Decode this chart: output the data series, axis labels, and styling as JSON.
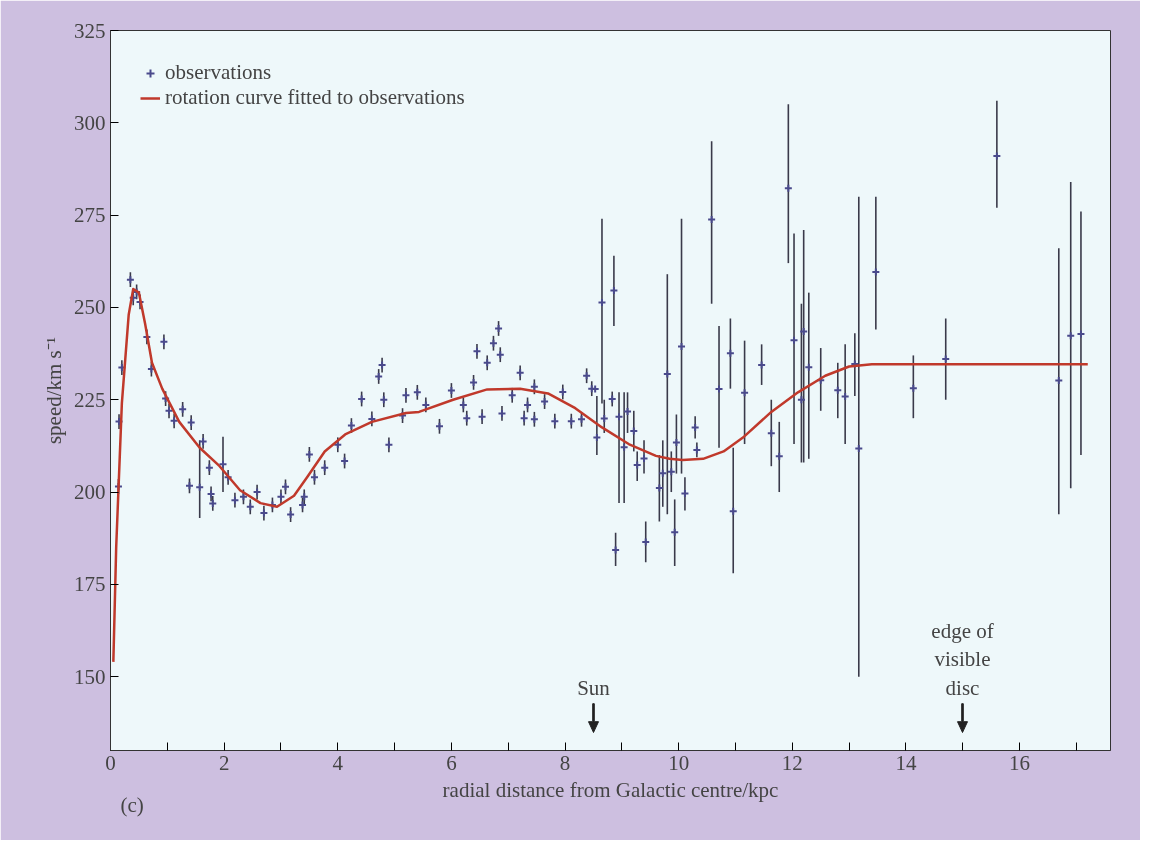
{
  "chart_data": {
    "type": "scatter",
    "xlabel": "radial distance from Galactic centre/kpc",
    "ylabel": "speed/km s⁻¹",
    "xlim": [
      0,
      17.6
    ],
    "ylim": [
      130,
      325
    ],
    "xticks": [
      0,
      {
        "value": 1,
        "label": null
      },
      2,
      {
        "value": 3,
        "label": null
      },
      4,
      {
        "value": 5,
        "label": null
      },
      6,
      {
        "value": 7,
        "label": null
      },
      8,
      {
        "value": 9,
        "label": null
      },
      10,
      {
        "value": 11,
        "label": null
      },
      12,
      {
        "value": 13,
        "label": null
      },
      14,
      {
        "value": 15,
        "label": null
      },
      16,
      {
        "value": 17,
        "label": null
      }
    ],
    "yticks": [
      150,
      175,
      200,
      225,
      250,
      275,
      300,
      325
    ],
    "legend": "top left",
    "annotations": [
      "(c)",
      "Sun",
      "edge of visible disc"
    ],
    "series": [
      {
        "name": "observations",
        "marker": "cross",
        "color": "#4a4a8c",
        "x": [
          0.14,
          0.15,
          0.2,
          0.35,
          0.4,
          0.46,
          0.52,
          0.64,
          0.72,
          0.94,
          0.97,
          1.03,
          1.12,
          1.27,
          1.42,
          1.39,
          1.57,
          1.63,
          1.74,
          1.77,
          1.8,
          1.98,
          2.07,
          2.19,
          2.34,
          2.46,
          2.58,
          2.7,
          2.85,
          3.0,
          3.08,
          3.17,
          3.38,
          3.41,
          3.5,
          3.59,
          3.77,
          4.0,
          4.12,
          4.24,
          4.42,
          4.6,
          4.72,
          4.78,
          4.81,
          4.9,
          5.14,
          5.2,
          5.4,
          5.55,
          5.79,
          6.0,
          6.21,
          6.27,
          6.39,
          6.45,
          6.54,
          6.63,
          6.74,
          6.83,
          6.86,
          6.89,
          7.07,
          7.21,
          7.28,
          7.34,
          7.46,
          7.46,
          7.64,
          7.82,
          7.96,
          8.11,
          8.29,
          8.38,
          8.47,
          8.53,
          8.56,
          8.65,
          8.69,
          8.83,
          8.86,
          8.89,
          8.95,
          9.04,
          9.1,
          9.21,
          9.27,
          9.39,
          9.42,
          9.66,
          9.72,
          9.8,
          9.87,
          9.93,
          9.96,
          10.05,
          10.11,
          10.29,
          10.32,
          10.58,
          10.71,
          10.91,
          10.96,
          11.16,
          11.46,
          11.63,
          11.77,
          11.93,
          12.03,
          12.16,
          12.2,
          12.29,
          12.5,
          12.8,
          12.93,
          13.1,
          13.17,
          13.47,
          14.13,
          14.7,
          15.6,
          16.69,
          16.9,
          17.08
        ],
        "values": [
          201.5,
          219.1,
          233.7,
          257.5,
          252.6,
          254.2,
          251.5,
          242,
          233.3,
          240.7,
          225.3,
          222,
          219.3,
          222.4,
          218.8,
          201.7,
          201.3,
          213.7,
          206.6,
          199.5,
          196.9,
          207.5,
          204,
          197.8,
          198.7,
          196,
          200,
          194.3,
          196.5,
          198.7,
          201.4,
          193.9,
          196.5,
          198.7,
          210.2,
          204,
          206.6,
          212.8,
          208.4,
          218,
          225.2,
          219.8,
          231.3,
          234.4,
          225,
          212.8,
          220.7,
          226.2,
          227,
          223.6,
          217.8,
          227.5,
          223.6,
          220,
          229.7,
          238.1,
          220.4,
          235,
          240.3,
          244.3,
          237.2,
          221.3,
          226.2,
          232.3,
          220,
          223.6,
          219.7,
          228.5,
          224.5,
          219.2,
          227.1,
          219.2,
          219.7,
          231.5,
          228,
          227.9,
          214.8,
          251.3,
          219.9,
          225.2,
          254.6,
          184.3,
          220.4,
          212.1,
          221.8,
          216.5,
          207.3,
          209.1,
          186.5,
          201.1,
          205.1,
          232,
          205.5,
          189.1,
          213.4,
          239.4,
          199.6,
          217.5,
          211.4,
          273.8,
          227.9,
          237.6,
          194.8,
          226.9,
          234.4,
          215.9,
          209.7,
          282.3,
          241.1,
          225,
          243.5,
          233.8,
          230.3,
          227.6,
          225.9,
          234.7,
          211.8,
          259.6,
          228.1,
          236,
          291,
          230.2,
          242.3,
          242.8
        ],
        "errors": [
          2,
          2,
          2,
          2,
          2,
          2,
          2,
          2,
          2,
          2,
          2,
          2,
          2,
          2,
          2,
          2,
          [
            193,
            214
          ],
          2,
          2,
          2,
          2,
          [
            200,
            215
          ],
          2,
          2,
          2,
          2,
          2,
          2,
          2,
          2,
          2,
          2,
          2,
          2,
          2,
          2,
          2,
          2,
          2,
          2,
          2,
          2,
          2,
          2,
          2,
          2,
          2,
          2,
          2,
          2,
          2,
          2,
          2,
          2,
          2,
          2,
          2,
          2,
          2,
          2,
          2,
          2,
          2,
          2,
          2,
          2,
          2,
          2,
          2,
          2,
          2,
          2,
          2,
          2,
          2,
          null,
          [
            210,
            226
          ],
          [
            224,
            274
          ],
          [
            216,
            225
          ],
          2,
          [
            245,
            264
          ],
          [
            180,
            189
          ],
          [
            197,
            227
          ],
          [
            197,
            227
          ],
          [
            216,
            227
          ],
          [
            211,
            222
          ],
          [
            203,
            211
          ],
          [
            205,
            214
          ],
          [
            181,
            192
          ],
          [
            192,
            210
          ],
          [
            196,
            214
          ],
          [
            194,
            259
          ],
          [
            200,
            211
          ],
          [
            180,
            198
          ],
          [
            205,
            221
          ],
          [
            205,
            274
          ],
          [
            195,
            204
          ],
          3,
          2,
          [
            251,
            295
          ],
          [
            212,
            245
          ],
          [
            228,
            247
          ],
          [
            178,
            212
          ],
          [
            213,
            241
          ],
          [
            229,
            240
          ],
          [
            207,
            225
          ],
          [
            200,
            219
          ],
          [
            262,
            305
          ],
          [
            213,
            270
          ],
          [
            208,
            251
          ],
          [
            208,
            271
          ],
          [
            209,
            254
          ],
          [
            222,
            239
          ],
          [
            220,
            235
          ],
          [
            213,
            240
          ],
          [
            226,
            243
          ],
          [
            150,
            280
          ],
          [
            244,
            280
          ],
          [
            220,
            237
          ],
          [
            225,
            247
          ],
          [
            277,
            306
          ],
          [
            194,
            266
          ],
          [
            201,
            284
          ],
          [
            210,
            276
          ]
        ]
      },
      {
        "name": "rotation curve fitted to observations",
        "type": "line",
        "color": "#c0392b",
        "x": [
          0.05,
          0.1,
          0.2,
          0.32,
          0.4,
          0.5,
          0.61,
          0.73,
          0.91,
          1.21,
          1.57,
          1.92,
          2.28,
          2.64,
          2.93,
          3.23,
          3.46,
          3.77,
          4.13,
          4.6,
          5.2,
          5.43,
          6.03,
          6.63,
          7.21,
          7.7,
          8.18,
          8.65,
          9.12,
          9.6,
          9.84,
          10.07,
          10.43,
          10.79,
          11.15,
          11.63,
          12.1,
          12.58,
          13.0,
          13.4,
          17.2
        ],
        "values": [
          154,
          185,
          224,
          248,
          255,
          254,
          245.5,
          235,
          228,
          219,
          212,
          207,
          200.5,
          197,
          196,
          199,
          204,
          211,
          215.6,
          219,
          221.4,
          221.7,
          225,
          227.8,
          228,
          226.7,
          222.7,
          217.5,
          213,
          209.8,
          209,
          208.7,
          209,
          211,
          215,
          221.7,
          227,
          231.5,
          234,
          234.6,
          234.6
        ]
      }
    ]
  }
}
